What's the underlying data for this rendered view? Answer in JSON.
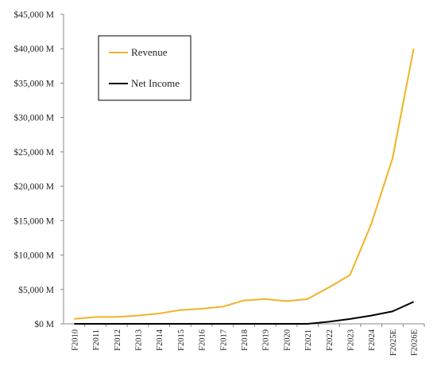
{
  "chart_data": {
    "type": "line",
    "categories": [
      "F2010",
      "F2011",
      "F2012",
      "F2013",
      "F2014",
      "F2015",
      "F2016",
      "F2017",
      "F2018",
      "F2019",
      "F2020",
      "F2021",
      "F2022",
      "F2023",
      "F2024",
      "F2025E",
      "F2026E"
    ],
    "series": [
      {
        "name": "Revenue",
        "color": "#F0B323",
        "values": [
          700,
          1000,
          1000,
          1200,
          1500,
          2000,
          2200,
          2500,
          3400,
          3600,
          3300,
          3600,
          5300,
          7100,
          14500,
          24000,
          40000
        ]
      },
      {
        "name": "Net Income",
        "color": "#000000",
        "values": [
          0,
          0,
          0,
          0,
          0,
          0,
          0,
          0,
          0,
          0,
          0,
          0,
          300,
          700,
          1200,
          1800,
          3200
        ]
      }
    ],
    "y_ticks": [
      "$0 M",
      "$5,000 M",
      "$10,000 M",
      "$15,000 M",
      "$20,000 M",
      "$25,000 M",
      "$30,000 M",
      "$35,000 M",
      "$40,000 M",
      "$45,000 M"
    ],
    "ylim": [
      0,
      45000
    ],
    "grid": false,
    "legend_position": "top-left"
  }
}
